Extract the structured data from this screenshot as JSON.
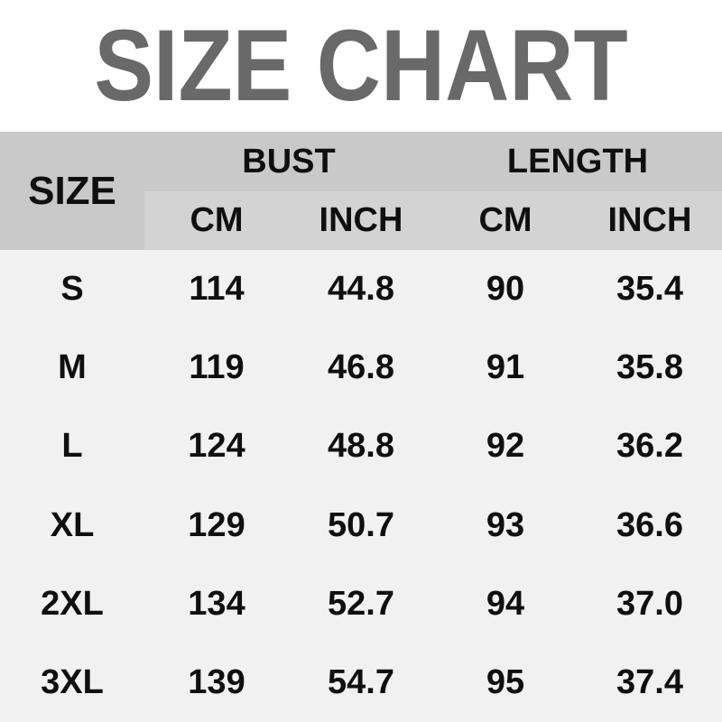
{
  "title": "SIZE CHART",
  "table": {
    "size_header": "SIZE",
    "groups": [
      {
        "label": "BUST",
        "sub": [
          "CM",
          "INCH"
        ]
      },
      {
        "label": "LENGTH",
        "sub": [
          "CM",
          "INCH"
        ]
      }
    ],
    "rows": [
      {
        "size": "S",
        "values": [
          "114",
          "44.8",
          "90",
          "35.4"
        ]
      },
      {
        "size": "M",
        "values": [
          "119",
          "46.8",
          "91",
          "35.8"
        ]
      },
      {
        "size": "L",
        "values": [
          "124",
          "48.8",
          "92",
          "36.2"
        ]
      },
      {
        "size": "XL",
        "values": [
          "129",
          "50.7",
          "93",
          "36.6"
        ]
      },
      {
        "size": "2XL",
        "values": [
          "134",
          "52.7",
          "94",
          "37.0"
        ]
      },
      {
        "size": "3XL",
        "values": [
          "139",
          "54.7",
          "95",
          "37.4"
        ]
      }
    ]
  },
  "chart_data": {
    "type": "table",
    "title": "SIZE CHART",
    "columns": [
      "SIZE",
      "BUST CM",
      "BUST INCH",
      "LENGTH CM",
      "LENGTH INCH"
    ],
    "rows": [
      [
        "S",
        114,
        44.8,
        90,
        35.4
      ],
      [
        "M",
        119,
        46.8,
        91,
        35.8
      ],
      [
        "L",
        124,
        48.8,
        92,
        36.2
      ],
      [
        "XL",
        129,
        50.7,
        93,
        36.6
      ],
      [
        "2XL",
        134,
        52.7,
        94,
        37.0
      ],
      [
        "3XL",
        139,
        54.7,
        95,
        37.4
      ]
    ]
  },
  "colors": {
    "page_bg": "#ffffff",
    "title_color": "#696969",
    "header_bg": "#c9c9c9",
    "subheader_bg": "#d3d3d3",
    "body_bg": "#f1f1f1",
    "text_color": "#0f0f0f"
  }
}
